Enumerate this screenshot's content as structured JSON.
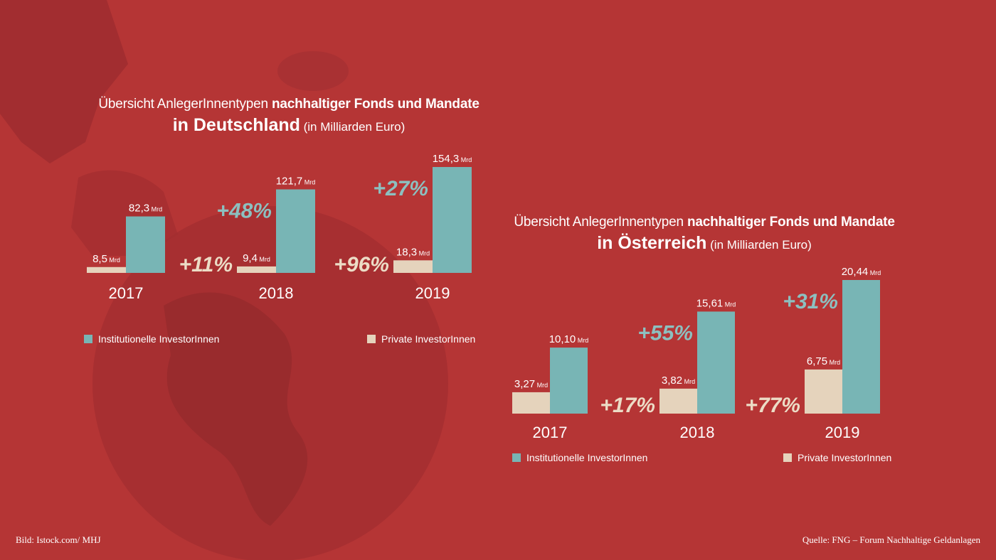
{
  "colors": {
    "background": "#b53535",
    "institutional": "#78b5b5",
    "private": "#e5d3bc",
    "inst_growth_text": "#8cc0c0",
    "priv_growth_text": "#ecdcc6"
  },
  "germany": {
    "title_light": "Übersicht AnlegerInnentypen ",
    "title_bold": "nachhaltiger Fonds und Mandate",
    "subtitle_bold": "in Deutschland",
    "subtitle_unit": " (in Milliarden Euro)"
  },
  "austria": {
    "title_light": "Übersicht AnlegerInnentypen ",
    "title_bold": "nachhaltiger Fonds und Mandate",
    "subtitle_bold": "in Österreich",
    "subtitle_unit": " (in Milliarden Euro)"
  },
  "footer": {
    "image_credit": "Bild: Istock.com/ MHJ",
    "source": "Quelle: FNG – Forum Nachhaltige Geldanlagen"
  },
  "chart_data": [
    {
      "type": "bar",
      "categories": [
        "2017",
        "2018",
        "2019"
      ],
      "unit_suffix": "Mrd",
      "series": [
        {
          "name": "Private InvestorInnen",
          "values": [
            8.5,
            9.4,
            18.3
          ],
          "labels": [
            "8,5",
            "9,4",
            "18,3"
          ],
          "growth": [
            "",
            "+11%",
            "+96%"
          ]
        },
        {
          "name": "Institutionelle InvestorInnen",
          "values": [
            82.3,
            121.7,
            154.3
          ],
          "labels": [
            "82,3",
            "121,7",
            "154,3"
          ],
          "growth": [
            "",
            "+48%",
            "+27%"
          ]
        }
      ]
    },
    {
      "type": "bar",
      "categories": [
        "2017",
        "2018",
        "2019"
      ],
      "unit_suffix": "Mrd",
      "series": [
        {
          "name": "Private InvestorInnen",
          "values": [
            3.27,
            3.82,
            6.75
          ],
          "labels": [
            "3,27",
            "3,82",
            "6,75"
          ],
          "growth": [
            "",
            "+17%",
            "+77%"
          ]
        },
        {
          "name": "Institutionelle InvestorInnen",
          "values": [
            10.1,
            15.61,
            20.44
          ],
          "labels": [
            "10,10",
            "15,61",
            "20,44"
          ],
          "growth": [
            "",
            "+55%",
            "+31%"
          ]
        }
      ]
    }
  ]
}
